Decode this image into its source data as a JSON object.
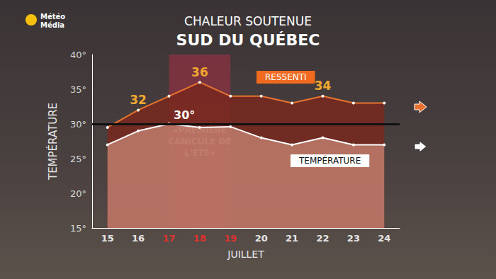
{
  "chart_data": {
    "type": "line",
    "logo": [
      "Météo",
      "Média"
    ],
    "subtitle": "CHALEUR SOUTENUE",
    "title": "SUD DU QUÉBEC",
    "x_label": "JUILLET",
    "y_label": "TEMPÉRATURE",
    "categories": [
      "15",
      "16",
      "17",
      "18",
      "19",
      "20",
      "21",
      "22",
      "23",
      "24"
    ],
    "series": [
      {
        "name": "RESSENTI",
        "color": "#e8732e",
        "values": [
          29.5,
          32,
          34,
          36,
          34,
          34,
          33,
          34,
          33,
          33
        ]
      },
      {
        "name": "TEMPÉRATURE",
        "color": "#ffffff",
        "values": [
          27,
          29,
          30,
          29.5,
          29.6,
          28,
          27,
          28,
          27,
          27
        ]
      }
    ],
    "ylim": [
      15,
      40
    ],
    "yticks": [
      {
        "value": 15,
        "label": "15°"
      },
      {
        "value": 20,
        "label": "20°"
      },
      {
        "value": 25,
        "label": "25°"
      },
      {
        "value": 30,
        "label": "30°"
      },
      {
        "value": 35,
        "label": "35°"
      },
      {
        "value": 40,
        "label": "40°"
      }
    ],
    "annotations": [
      {
        "x": "16",
        "y": 32,
        "text": "32"
      },
      {
        "x": "18",
        "y": 36,
        "text": "36"
      },
      {
        "x": "22",
        "y": 34,
        "text": "34"
      }
    ],
    "reference_line": {
      "value": 30,
      "label": "30°"
    },
    "highlight": {
      "from": "17",
      "to": "19",
      "label": "«PREMIÈRE\nCANICULE DE\nL'ÉTÉ»"
    },
    "marker": "circle",
    "grid": false
  }
}
